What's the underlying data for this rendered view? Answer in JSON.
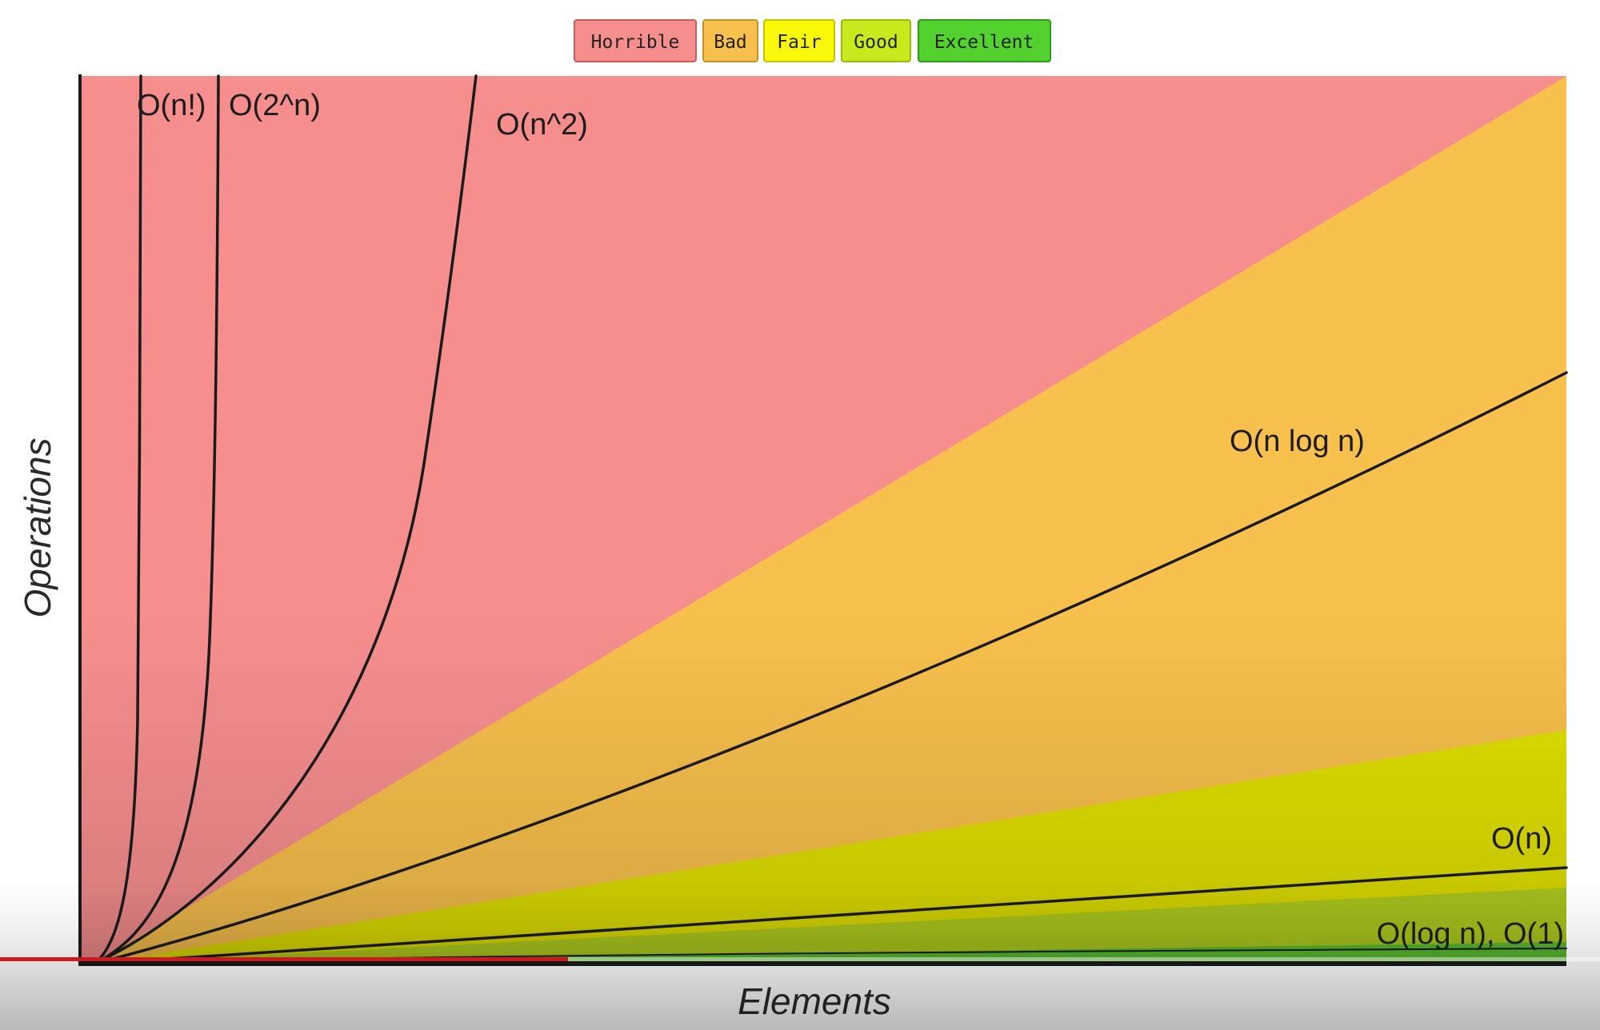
{
  "legend": {
    "items": [
      {
        "label": "Horrible",
        "color": "#f78e8e"
      },
      {
        "label": "Bad",
        "color": "#f8c04c"
      },
      {
        "label": "Fair",
        "color": "#f8f808"
      },
      {
        "label": "Good",
        "color": "#c8ea1c"
      },
      {
        "label": "Excellent",
        "color": "#53d12e"
      }
    ]
  },
  "chart_data": {
    "type": "area",
    "xlabel": "Elements",
    "ylabel": "Operations",
    "grid": false,
    "legend_position": "top-center",
    "regions": [
      {
        "name": "Horrible",
        "color": "#f78e8e"
      },
      {
        "name": "Bad",
        "color": "#f8c04c"
      },
      {
        "name": "Fair",
        "color": "#e0e000"
      },
      {
        "name": "Good",
        "color": "#b4d21e"
      },
      {
        "name": "Excellent",
        "color": "#5ec732"
      }
    ],
    "curves": [
      {
        "label": "O(n!)"
      },
      {
        "label": "O(2^n)"
      },
      {
        "label": "O(n^2)"
      },
      {
        "label": "O(n log n)"
      },
      {
        "label": "O(n)"
      },
      {
        "label": "O(log n), O(1)"
      }
    ]
  },
  "player": {
    "progress": 0.355
  }
}
